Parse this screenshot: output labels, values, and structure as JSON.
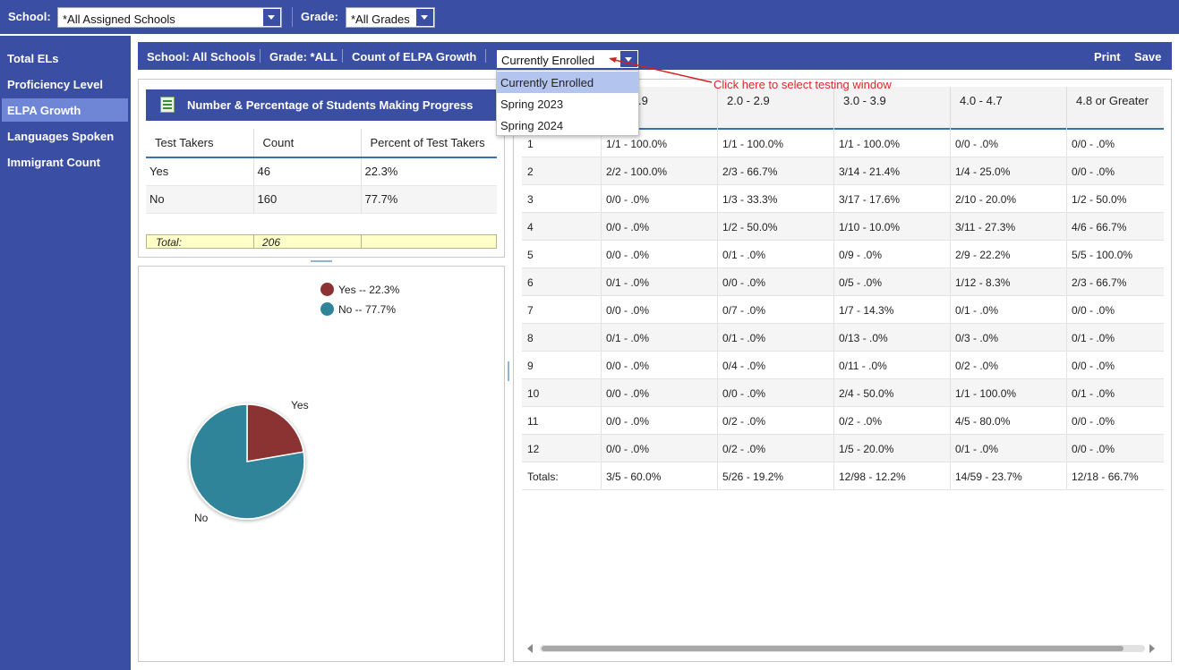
{
  "topbar": {
    "school_label": "School:",
    "school_value": "*All Assigned Schools",
    "grade_label": "Grade:",
    "grade_value": "*All Grades"
  },
  "sidebar": {
    "items": [
      {
        "label": "Total ELs",
        "active": false
      },
      {
        "label": "Proficiency Level",
        "active": false
      },
      {
        "label": "ELPA Growth",
        "active": true
      },
      {
        "label": "Languages Spoken",
        "active": false
      },
      {
        "label": "Immigrant Count",
        "active": false
      }
    ]
  },
  "breadcrumb": {
    "school": "School: All Schools",
    "grade": "Grade: *ALL",
    "metric": "Count of ELPA Growth",
    "window_value": "Currently Enrolled",
    "print": "Print",
    "save": "Save"
  },
  "dropdown": {
    "options": [
      "Currently Enrolled",
      "Spring 2023",
      "Spring 2024"
    ],
    "selected": "Currently Enrolled"
  },
  "annotation": "Click here to select testing window",
  "summary": {
    "title": "Number & Percentage of Students Making Progress",
    "headers": [
      "Test Takers",
      "Count",
      "Percent of Test Takers"
    ],
    "rows": [
      [
        "Yes",
        "46",
        "22.3%"
      ],
      [
        "No",
        "160",
        "77.7%"
      ]
    ],
    "total_label": "Total:",
    "total_value": "206"
  },
  "chart_data": {
    "type": "pie",
    "labels": [
      "Yes",
      "No"
    ],
    "values": [
      22.3,
      77.7
    ],
    "colors": [
      "#8b3332",
      "#2f8499"
    ],
    "legend": [
      "Yes -- 22.3%",
      "No -- 77.7%"
    ],
    "legend_position": "top-right",
    "title": ""
  },
  "grid": {
    "headers": [
      "",
      ".9",
      "2.0 - 2.9",
      "3.0 - 3.9",
      "4.0 - 4.7",
      "4.8 or Greater"
    ],
    "rows": [
      [
        "1",
        "1/1 - 100.0%",
        "1/1 - 100.0%",
        "1/1 - 100.0%",
        "0/0 - .0%",
        "0/0 - .0%"
      ],
      [
        "2",
        "2/2 - 100.0%",
        "2/3 - 66.7%",
        "3/14 - 21.4%",
        "1/4 - 25.0%",
        "0/0 - .0%"
      ],
      [
        "3",
        "0/0 - .0%",
        "1/3 - 33.3%",
        "3/17 - 17.6%",
        "2/10 - 20.0%",
        "1/2 - 50.0%"
      ],
      [
        "4",
        "0/0 - .0%",
        "1/2 - 50.0%",
        "1/10 - 10.0%",
        "3/11 - 27.3%",
        "4/6 - 66.7%"
      ],
      [
        "5",
        "0/0 - .0%",
        "0/1 - .0%",
        "0/9 - .0%",
        "2/9 - 22.2%",
        "5/5 - 100.0%"
      ],
      [
        "6",
        "0/1 - .0%",
        "0/0 - .0%",
        "0/5 - .0%",
        "1/12 - 8.3%",
        "2/3 - 66.7%"
      ],
      [
        "7",
        "0/0 - .0%",
        "0/7 - .0%",
        "1/7 - 14.3%",
        "0/1 - .0%",
        "0/0 - .0%"
      ],
      [
        "8",
        "0/1 - .0%",
        "0/1 - .0%",
        "0/13 - .0%",
        "0/3 - .0%",
        "0/1 - .0%"
      ],
      [
        "9",
        "0/0 - .0%",
        "0/4 - .0%",
        "0/11 - .0%",
        "0/2 - .0%",
        "0/0 - .0%"
      ],
      [
        "10",
        "0/0 - .0%",
        "0/0 - .0%",
        "2/4 - 50.0%",
        "1/1 - 100.0%",
        "0/1 - .0%"
      ],
      [
        "11",
        "0/0 - .0%",
        "0/2 - .0%",
        "0/2 - .0%",
        "4/5 - 80.0%",
        "0/0 - .0%"
      ],
      [
        "12",
        "0/0 - .0%",
        "0/2 - .0%",
        "1/5 - 20.0%",
        "0/1 - .0%",
        "0/0 - .0%"
      ],
      [
        "Totals:",
        "3/5 - 60.0%",
        "5/26 - 19.2%",
        "12/98 - 12.2%",
        "14/59 - 23.7%",
        "12/18 - 66.7%"
      ]
    ]
  }
}
